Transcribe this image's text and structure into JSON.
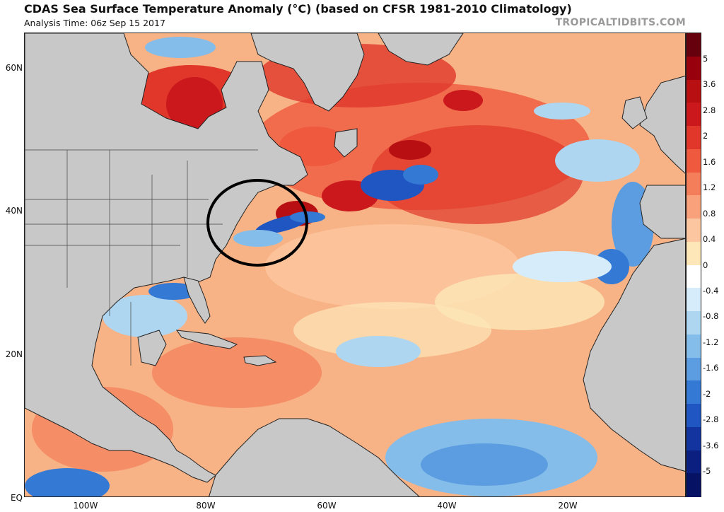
{
  "header": {
    "title": "CDAS Sea Surface Temperature Anomaly (°C) (based on CFSR 1981-2010 Climatology)",
    "analysis_time": "Analysis Time: 06z Sep 15 2017",
    "brand": "TROPICALTIDBITS.COM"
  },
  "map": {
    "lat_labels": [
      "60N",
      "40N",
      "20N",
      "EQ"
    ],
    "lon_labels": [
      "100W",
      "80W",
      "60W",
      "40W",
      "20W"
    ],
    "lat_range": [
      0,
      66
    ],
    "lon_range": [
      -110,
      0
    ],
    "annotation": "circle around Gulf Stream / Mid-Atlantic coast anomaly"
  },
  "colorbar": {
    "unit": "°C",
    "labels": [
      "5",
      "3.6",
      "2.8",
      "2",
      "1.6",
      "1.2",
      "0.8",
      "0.4",
      "0",
      "-0.4",
      "-0.8",
      "-1.2",
      "-1.6",
      "-2",
      "-2.8",
      "-3.6",
      "-5"
    ],
    "colors": [
      "#67000d",
      "#99000d",
      "#b81012",
      "#cb181d",
      "#e0372a",
      "#ef5a3f",
      "#f47e5a",
      "#f9a17a",
      "#fcc7a0",
      "#fde7b8",
      "#ffffff",
      "#d6ecfa",
      "#aed6f1",
      "#85bdea",
      "#5b9de0",
      "#3479d4",
      "#1f56c2",
      "#13349e",
      "#0b1f80",
      "#061263"
    ]
  },
  "colors": {
    "land": "#c8c8c8",
    "border": "#222222",
    "annotation_circle": "#000000"
  }
}
